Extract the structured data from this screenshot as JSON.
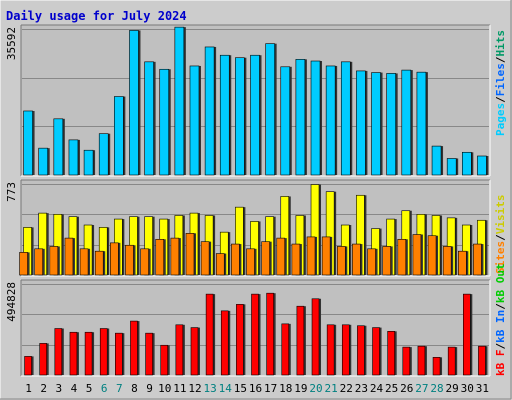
{
  "title": "Daily usage for July 2024",
  "colors": {
    "background": "#cccccc",
    "plot_bg": "#c0c0c0",
    "title": "#0000cc",
    "pages": "#00ccff",
    "files": "#0066ff",
    "hits": "#009966",
    "visits": "#ffff00",
    "sites": "#ff8000",
    "kb_in": "#0066ff",
    "kb_out": "#00cc00",
    "kb_f": "#ff0000",
    "kb": "#ff0000",
    "weekend": "#008080"
  },
  "legends": {
    "top": [
      {
        "text": "Pages",
        "color": "#00ccff"
      },
      {
        "text": "/",
        "color": "#000000"
      },
      {
        "text": "Files",
        "color": "#0066ff"
      },
      {
        "text": "/",
        "color": "#000000"
      },
      {
        "text": "Hits",
        "color": "#009966"
      }
    ],
    "middle": [
      {
        "text": "Sites",
        "color": "#ff8000"
      },
      {
        "text": "/",
        "color": "#000000"
      },
      {
        "text": "Visits",
        "color": "#cccc00"
      }
    ],
    "bottom": [
      {
        "text": "kB F",
        "color": "#ff0000"
      },
      {
        "text": "/",
        "color": "#000000"
      },
      {
        "text": "kB In",
        "color": "#0066ff"
      },
      {
        "text": "/",
        "color": "#000000"
      },
      {
        "text": "kB Out",
        "color": "#00cc00"
      }
    ]
  },
  "chart_data": [
    {
      "type": "bar",
      "panel": "top",
      "max_label": "35592",
      "ylim": [
        0,
        35592
      ],
      "x": [
        "1",
        "2",
        "3",
        "4",
        "5",
        "6",
        "7",
        "8",
        "9",
        "10",
        "11",
        "12",
        "13",
        "14",
        "15",
        "16",
        "17",
        "18",
        "19",
        "20",
        "21",
        "22",
        "23",
        "24",
        "25",
        "26",
        "27",
        "28",
        "29",
        "30",
        "31"
      ],
      "weekend_days": [
        "6",
        "7",
        "13",
        "14",
        "20",
        "21",
        "27",
        "28"
      ],
      "series": [
        {
          "name": "Pages",
          "color": "#00ccff",
          "values": [
            15500,
            6500,
            13600,
            8500,
            6000,
            10000,
            19000,
            35000,
            27400,
            25600,
            35800,
            26400,
            31000,
            29000,
            28400,
            29000,
            31800,
            26200,
            28000,
            27600,
            26400,
            27400,
            25200,
            24800,
            24600,
            25400,
            24900,
            7000,
            4000,
            5500,
            4600
          ]
        }
      ]
    },
    {
      "type": "bar",
      "panel": "middle",
      "max_label": "773",
      "ylim": [
        0,
        773
      ],
      "x": [
        "1",
        "2",
        "3",
        "4",
        "5",
        "6",
        "7",
        "8",
        "9",
        "10",
        "11",
        "12",
        "13",
        "14",
        "15",
        "16",
        "17",
        "18",
        "19",
        "20",
        "21",
        "22",
        "23",
        "24",
        "25",
        "26",
        "27",
        "28",
        "29",
        "30",
        "31"
      ],
      "series": [
        {
          "name": "Visits",
          "color": "#ffff00",
          "values": [
            400,
            520,
            510,
            490,
            420,
            400,
            470,
            490,
            490,
            470,
            500,
            520,
            500,
            360,
            570,
            450,
            490,
            660,
            500,
            760,
            700,
            420,
            670,
            390,
            470,
            540,
            510,
            500,
            480,
            420,
            460
          ]
        },
        {
          "name": "Sites",
          "color": "#ff8000",
          "values": [
            190,
            220,
            240,
            310,
            220,
            200,
            270,
            250,
            220,
            300,
            310,
            350,
            280,
            180,
            260,
            220,
            280,
            310,
            260,
            320,
            320,
            240,
            260,
            220,
            240,
            300,
            340,
            330,
            240,
            200,
            260
          ]
        }
      ]
    },
    {
      "type": "bar",
      "panel": "bottom",
      "max_label": "494828",
      "ylim": [
        0,
        494828
      ],
      "x": [
        "1",
        "2",
        "3",
        "4",
        "5",
        "6",
        "7",
        "8",
        "9",
        "10",
        "11",
        "12",
        "13",
        "14",
        "15",
        "16",
        "17",
        "18",
        "19",
        "20",
        "21",
        "22",
        "23",
        "24",
        "25",
        "26",
        "27",
        "28",
        "29",
        "30",
        "31"
      ],
      "series": [
        {
          "name": "kB F",
          "color": "#ff0000",
          "values": [
            100000,
            170000,
            250000,
            230000,
            230000,
            250000,
            225000,
            290000,
            225000,
            160000,
            270000,
            255000,
            435000,
            345000,
            380000,
            435000,
            440000,
            275000,
            370000,
            410000,
            270000,
            270000,
            265000,
            255000,
            235000,
            150000,
            155000,
            95000,
            150000,
            435000,
            155000
          ]
        }
      ]
    }
  ]
}
